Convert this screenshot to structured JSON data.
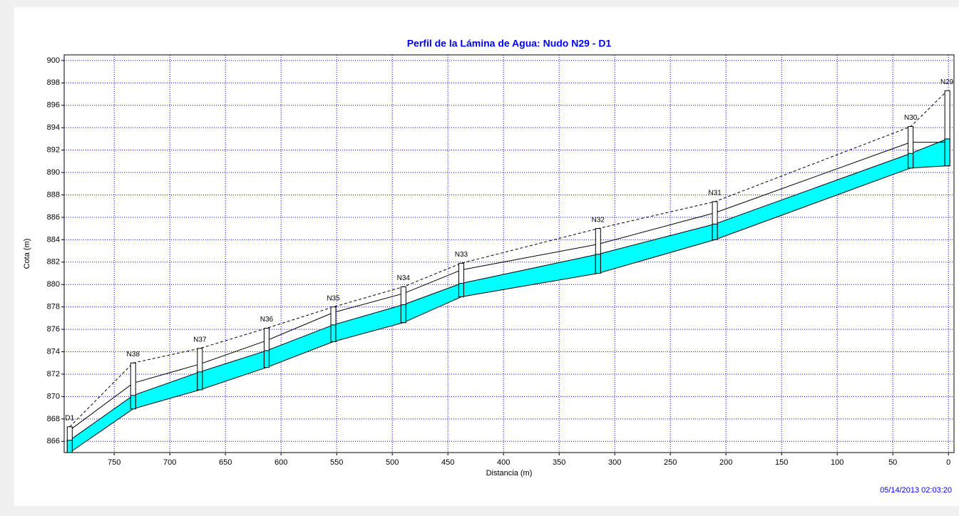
{
  "chart_data": {
    "type": "profile",
    "title": "Perfil de la Lámina de Agua:  Nudo N29 - D1",
    "x_label": "Distancia (m)",
    "y_label": "Cota (m)",
    "timestamp": "05/14/2013 02:03:20",
    "labels": [
      "D1",
      "N38",
      "N37",
      "N36",
      "N35",
      "N34",
      "N33",
      "N32",
      "N31",
      "N30",
      "N29"
    ],
    "x": [
      790,
      733,
      673,
      613,
      553,
      490,
      438,
      315,
      210,
      34,
      1
    ],
    "ground": [
      867.3,
      873.0,
      874.3,
      876.1,
      878.0,
      879.8,
      881.9,
      885.0,
      887.4,
      894.1,
      897.3
    ],
    "crown": [
      867.0,
      871.2,
      872.9,
      875.0,
      877.5,
      879.2,
      881.3,
      883.6,
      886.4,
      892.7,
      892.7
    ],
    "water": [
      866.1,
      870.1,
      872.2,
      874.1,
      876.4,
      878.2,
      880.1,
      882.7,
      885.4,
      891.7,
      893.0
    ],
    "invert": [
      865.0,
      868.9,
      870.6,
      872.6,
      874.9,
      876.6,
      878.9,
      881.0,
      884.0,
      890.4,
      890.6
    ],
    "water_color": "#00ffff",
    "grid_color": "#0000ff",
    "grid": true,
    "xlim": [
      795,
      -5
    ],
    "ylim": [
      865,
      900.5
    ],
    "xticks": [
      750,
      700,
      650,
      600,
      550,
      500,
      450,
      400,
      350,
      300,
      250,
      200,
      150,
      100,
      50,
      0
    ],
    "yticks": [
      866,
      868,
      870,
      872,
      874,
      876,
      878,
      880,
      882,
      884,
      886,
      888,
      890,
      892,
      894,
      896,
      898,
      900
    ]
  }
}
